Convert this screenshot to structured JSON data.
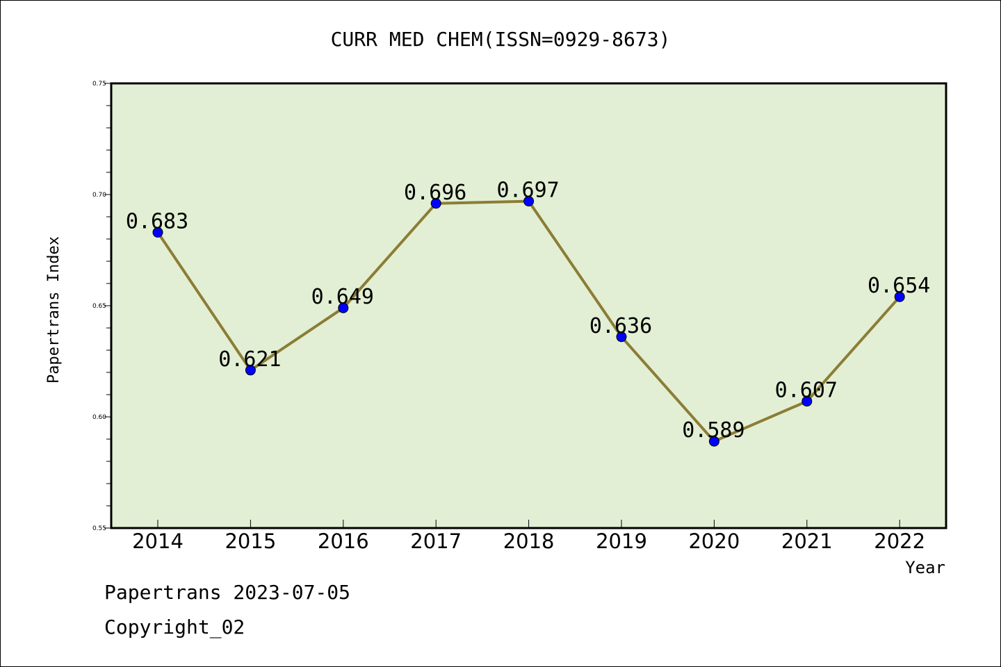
{
  "chart_data": {
    "type": "line",
    "title": "CURR MED CHEM(ISSN=0929-8673)",
    "xlabel": "Year",
    "ylabel": "Papertrans Index",
    "categories": [
      "2014",
      "2015",
      "2016",
      "2017",
      "2018",
      "2019",
      "2020",
      "2021",
      "2022"
    ],
    "series": [
      {
        "values": [
          0.683,
          0.621,
          0.649,
          0.696,
          0.697,
          0.636,
          0.589,
          0.607,
          0.654
        ]
      }
    ],
    "data_labels": [
      "0.683",
      "0.621",
      "0.649",
      "0.696",
      "0.697",
      "0.636",
      "0.589",
      "0.607",
      "0.654"
    ],
    "ylim": [
      0.55,
      0.75
    ],
    "yticks": [
      "0.55",
      "0.60",
      "0.65",
      "0.70",
      "0.75"
    ],
    "grid": false,
    "legend": "none",
    "colors": {
      "plot_background": "#e2efd4",
      "line": "#8b7d35",
      "marker": "#0000ff"
    }
  },
  "footer": {
    "date_line": "Papertrans 2023-07-05",
    "copyright": "Copyright_02"
  }
}
